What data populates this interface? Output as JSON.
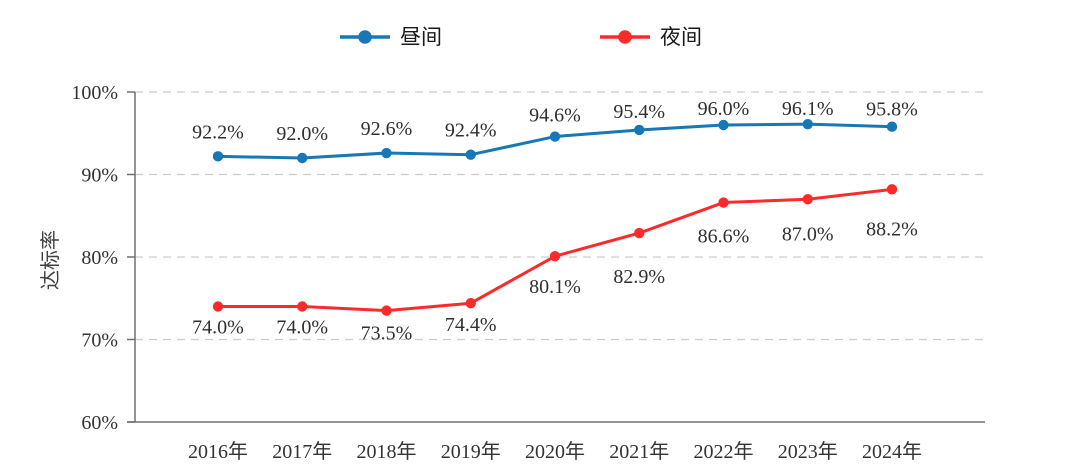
{
  "chart_data": {
    "type": "line",
    "title": "",
    "xlabel": "",
    "ylabel": "达标率",
    "categories": [
      "2016年",
      "2017年",
      "2018年",
      "2019年",
      "2020年",
      "2021年",
      "2022年",
      "2023年",
      "2024年"
    ],
    "series": [
      {
        "name": "昼间",
        "id": "daytime",
        "color": "#1778B5",
        "values": [
          92.2,
          92.0,
          92.6,
          92.4,
          94.6,
          95.4,
          96.0,
          96.1,
          95.8
        ],
        "point_labels": [
          "92.2%",
          "92.0%",
          "92.6%",
          "92.4%",
          "94.6%",
          "95.4%",
          "96.0%",
          "96.1%",
          "95.8%"
        ],
        "label_position": "above"
      },
      {
        "name": "夜间",
        "id": "nighttime",
        "color": "#FB2B2B",
        "values": [
          74.0,
          74.0,
          73.5,
          74.4,
          80.1,
          82.9,
          86.6,
          87.0,
          88.2
        ],
        "point_labels": [
          "74.0%",
          "74.0%",
          "73.5%",
          "74.4%",
          "80.1%",
          "82.9%",
          "86.6%",
          "87.0%",
          "88.2%"
        ],
        "label_position": "below"
      }
    ],
    "y_axis": {
      "min": 60,
      "max": 100,
      "ticks": [
        {
          "value": 60,
          "label": "60%"
        },
        {
          "value": 70,
          "label": "70%"
        },
        {
          "value": 80,
          "label": "80%"
        },
        {
          "value": 90,
          "label": "90%"
        },
        {
          "value": 100,
          "label": "100%"
        }
      ]
    },
    "grid": {
      "horizontal": true,
      "style": "dashed",
      "color": "#CCCCCC"
    },
    "legend": {
      "position": "top",
      "items": [
        "昼间",
        "夜间"
      ]
    },
    "colors": {
      "axis": "#707070",
      "text": "#333333",
      "grid": "#CCCCCC"
    }
  }
}
